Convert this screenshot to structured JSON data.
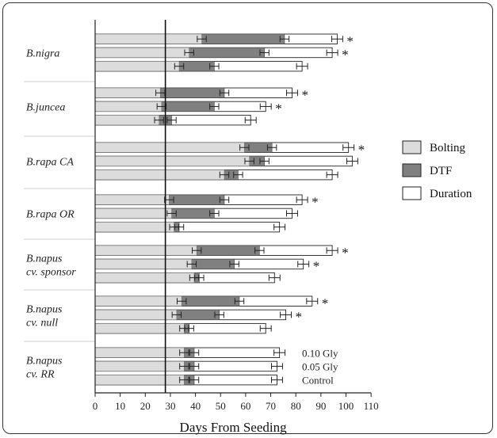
{
  "chart_data": {
    "type": "bar",
    "orientation": "horizontal",
    "stacking": "overlaid",
    "xlabel": "Days From Seeding",
    "xlim": [
      0,
      110
    ],
    "xticks": [
      0,
      10,
      20,
      30,
      40,
      50,
      60,
      70,
      80,
      90,
      100,
      110
    ],
    "reference_line_x": 28,
    "legend_position": "right",
    "series": [
      {
        "name": "Bolting",
        "color": "#dcdcdc"
      },
      {
        "name": "DTF",
        "color": "#808080"
      },
      {
        "name": "Duration",
        "color": "#ffffff"
      }
    ],
    "treatment_labels": [
      "0.10 Gly",
      "0.05 Gly",
      "Control"
    ],
    "groups": [
      {
        "label": [
          "B.nigra"
        ],
        "bars": [
          {
            "bolting": 42.5,
            "dtf": 75.5,
            "duration": 96.5,
            "star": true
          },
          {
            "bolting": 37.5,
            "dtf": 67.5,
            "duration": 94.5,
            "star": true
          },
          {
            "bolting": 33.5,
            "dtf": 47.5,
            "duration": 82.5,
            "star": false
          }
        ]
      },
      {
        "label": [
          "B.juncea"
        ],
        "bars": [
          {
            "bolting": 26,
            "dtf": 51.5,
            "duration": 78.5,
            "star": true
          },
          {
            "bolting": 26.5,
            "dtf": 47.5,
            "duration": 68,
            "star": true
          },
          {
            "bolting": 25.5,
            "dtf": 30.5,
            "duration": 62,
            "star": false
          }
        ]
      },
      {
        "label": [
          "B.rapa CA"
        ],
        "bars": [
          {
            "bolting": 59.5,
            "dtf": 70.5,
            "duration": 101,
            "star": true
          },
          {
            "bolting": 61.5,
            "dtf": 67.5,
            "duration": 102.5,
            "star": false
          },
          {
            "bolting": 51.5,
            "dtf": 57,
            "duration": 94.5,
            "star": false
          }
        ]
      },
      {
        "label": [
          "B.rapa OR"
        ],
        "bars": [
          {
            "bolting": 29.5,
            "dtf": 51.5,
            "duration": 82.5,
            "star": true
          },
          {
            "bolting": 30.5,
            "dtf": 47.5,
            "duration": 78.5,
            "star": false
          },
          {
            "bolting": 31.5,
            "dtf": 33.5,
            "duration": 73.5,
            "star": false
          }
        ]
      },
      {
        "label": [
          "B.napus",
          "cv. sponsor"
        ],
        "bars": [
          {
            "bolting": 40.5,
            "dtf": 65.5,
            "duration": 94.5,
            "star": true
          },
          {
            "bolting": 38.5,
            "dtf": 55.5,
            "duration": 83,
            "star": true
          },
          {
            "bolting": 39.5,
            "dtf": 41.5,
            "duration": 71.5,
            "star": false
          }
        ]
      },
      {
        "label": [
          "B.napus",
          "cv. null"
        ],
        "bars": [
          {
            "bolting": 34.5,
            "dtf": 57.5,
            "duration": 86.5,
            "star": true
          },
          {
            "bolting": 32.5,
            "dtf": 49.5,
            "duration": 76,
            "star": true
          },
          {
            "bolting": 35.5,
            "dtf": 37.5,
            "duration": 68,
            "star": false
          }
        ]
      },
      {
        "label": [
          "B.napus",
          "cv. RR"
        ],
        "bars": [
          {
            "bolting": 35.5,
            "dtf": 39.5,
            "duration": 73.5,
            "star": false
          },
          {
            "bolting": 35.5,
            "dtf": 39.5,
            "duration": 72.5,
            "star": false
          },
          {
            "bolting": 35.5,
            "dtf": 39.5,
            "duration": 72.5,
            "star": false
          }
        ]
      }
    ]
  }
}
